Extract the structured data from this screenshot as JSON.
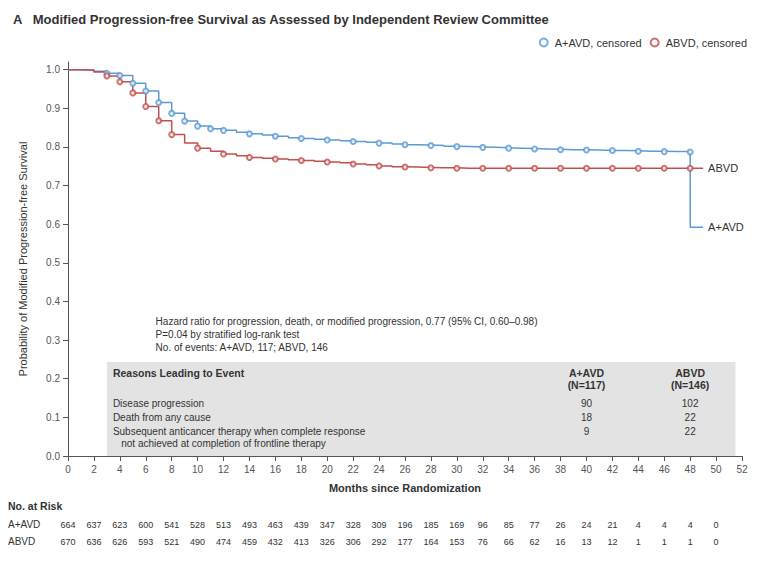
{
  "chart_data": {
    "type": "step",
    "title": "A   Modified Progression-free Survival as Assessed by Independent Review Committee",
    "xlabel": "Months since Randomization",
    "ylabel": "Probability of Modified Progression-free Survival",
    "series": [
      {
        "name": "A+AVD",
        "type": "step",
        "color": "#5b9bd5",
        "x": [
          0,
          1,
          2,
          3,
          4,
          5,
          6,
          7,
          8,
          9,
          10,
          11,
          12,
          13,
          14,
          15,
          16,
          17,
          18,
          19,
          20,
          21,
          22,
          23,
          24,
          25,
          26,
          27,
          28,
          29,
          30,
          31,
          32,
          33,
          34,
          35,
          36,
          37,
          38,
          39,
          40,
          41,
          42,
          43,
          44,
          45,
          46,
          47,
          48,
          48.01,
          49
        ],
        "values": [
          1.0,
          0.999,
          0.996,
          0.991,
          0.985,
          0.965,
          0.945,
          0.915,
          0.887,
          0.867,
          0.854,
          0.847,
          0.843,
          0.838,
          0.834,
          0.831,
          0.828,
          0.824,
          0.822,
          0.82,
          0.818,
          0.816,
          0.814,
          0.812,
          0.81,
          0.808,
          0.806,
          0.805,
          0.804,
          0.802,
          0.801,
          0.8,
          0.799,
          0.798,
          0.797,
          0.796,
          0.795,
          0.794,
          0.793,
          0.793,
          0.792,
          0.791,
          0.791,
          0.79,
          0.789,
          0.789,
          0.788,
          0.788,
          0.787,
          0.592,
          0.592
        ]
      },
      {
        "name": "ABVD",
        "type": "step",
        "color": "#c0504d",
        "x": [
          0,
          1,
          2,
          3,
          4,
          5,
          6,
          7,
          8,
          9,
          10,
          11,
          12,
          13,
          14,
          15,
          16,
          17,
          18,
          19,
          20,
          21,
          22,
          23,
          24,
          25,
          26,
          27,
          28,
          29,
          30,
          31,
          32,
          33,
          34,
          35,
          36,
          37,
          38,
          39,
          40,
          41,
          42,
          43,
          44,
          45,
          46,
          47,
          48,
          49
        ],
        "values": [
          1.0,
          0.999,
          0.994,
          0.984,
          0.969,
          0.94,
          0.905,
          0.868,
          0.832,
          0.81,
          0.797,
          0.789,
          0.782,
          0.777,
          0.773,
          0.771,
          0.769,
          0.767,
          0.765,
          0.763,
          0.761,
          0.759,
          0.756,
          0.754,
          0.751,
          0.749,
          0.748,
          0.747,
          0.746,
          0.746,
          0.745,
          0.745,
          0.745,
          0.745,
          0.745,
          0.745,
          0.745,
          0.745,
          0.745,
          0.745,
          0.745,
          0.745,
          0.745,
          0.745,
          0.745,
          0.745,
          0.745,
          0.745,
          0.745,
          0.745
        ]
      },
      {
        "name": "A+AVD, censored",
        "type": "scatter",
        "marker": "open_circle",
        "color": "#5b9bd5",
        "x": [
          3,
          4,
          5,
          6,
          7,
          8,
          9,
          10,
          11,
          12,
          14,
          16,
          18,
          20,
          22,
          24,
          26,
          28,
          30,
          32,
          34,
          36,
          38,
          40,
          42,
          44,
          46,
          48
        ],
        "values": [
          0.991,
          0.985,
          0.965,
          0.945,
          0.915,
          0.887,
          0.867,
          0.854,
          0.847,
          0.843,
          0.834,
          0.828,
          0.822,
          0.818,
          0.814,
          0.81,
          0.806,
          0.804,
          0.801,
          0.799,
          0.797,
          0.795,
          0.793,
          0.792,
          0.791,
          0.789,
          0.788,
          0.787
        ]
      },
      {
        "name": "ABVD, censored",
        "type": "scatter",
        "marker": "open_circle",
        "color": "#c0504d",
        "x": [
          3,
          4,
          5,
          6,
          7,
          8,
          10,
          12,
          14,
          16,
          18,
          20,
          22,
          24,
          26,
          28,
          30,
          32,
          34,
          36,
          38,
          40,
          42,
          44,
          46,
          48
        ],
        "values": [
          0.984,
          0.969,
          0.94,
          0.905,
          0.868,
          0.832,
          0.797,
          0.782,
          0.773,
          0.769,
          0.765,
          0.761,
          0.756,
          0.751,
          0.748,
          0.746,
          0.745,
          0.745,
          0.745,
          0.745,
          0.745,
          0.745,
          0.745,
          0.745,
          0.745,
          0.745
        ]
      }
    ],
    "annotations": [
      "Hazard ratio for progression, death, or modified progression, 0.77 (95% CI, 0.60–0.98)",
      "P=0.04 by stratified log-rank test",
      "No. of events: A+AVD, 117; ABVD, 146"
    ],
    "table": {
      "title": "Reasons Leading to Event",
      "columns": [
        "A+AVD\n(N=117)",
        "ABVD\n(N=146)"
      ],
      "rows": [
        {
          "label": "Disease progression",
          "values": [
            90,
            102
          ]
        },
        {
          "label": "Death from any cause",
          "values": [
            18,
            22
          ]
        },
        {
          "label": "Subsequent anticancer therapy when complete response\n   not achieved at completion of frontline therapy",
          "values": [
            9,
            22
          ]
        }
      ]
    },
    "at_risk": {
      "title": "No. at Risk",
      "x": [
        0,
        2,
        4,
        6,
        8,
        10,
        12,
        14,
        16,
        18,
        20,
        22,
        24,
        26,
        28,
        30,
        32,
        34,
        36,
        38,
        40,
        42,
        44,
        46,
        48,
        50
      ],
      "series": [
        {
          "name": "A+AVD",
          "values": [
            664,
            637,
            623,
            600,
            541,
            528,
            513,
            493,
            463,
            439,
            347,
            328,
            309,
            196,
            185,
            169,
            96,
            85,
            77,
            26,
            24,
            21,
            4,
            4,
            4,
            0
          ]
        },
        {
          "name": "ABVD",
          "values": [
            670,
            636,
            626,
            593,
            521,
            490,
            474,
            459,
            432,
            413,
            326,
            306,
            292,
            177,
            164,
            153,
            76,
            66,
            62,
            16,
            13,
            12,
            1,
            1,
            1,
            0
          ]
        }
      ]
    },
    "xlim": [
      0,
      52
    ],
    "ylim": [
      0.0,
      1.02
    ],
    "xticks": [
      0,
      2,
      4,
      6,
      8,
      10,
      12,
      14,
      16,
      18,
      20,
      22,
      24,
      26,
      28,
      30,
      32,
      34,
      36,
      38,
      40,
      42,
      44,
      46,
      48,
      50,
      52
    ],
    "yticks": [
      {
        "value": 0,
        "label": "0.0"
      },
      0.1,
      0.2,
      0.3,
      0.4,
      0.5,
      0.6,
      0.7,
      0.8,
      0.9,
      {
        "value": 1,
        "label": "1.0"
      }
    ],
    "grid": false,
    "legend": "upper right"
  }
}
